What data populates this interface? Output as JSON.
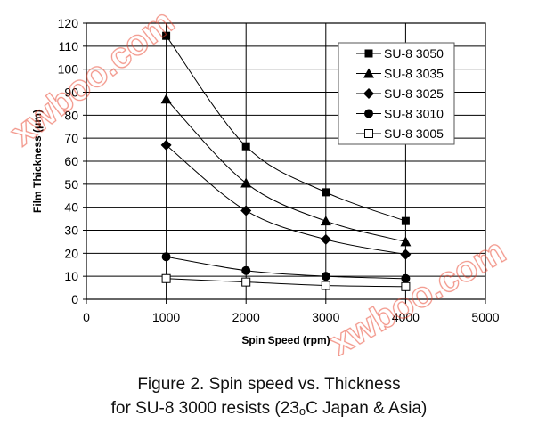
{
  "chart_data": {
    "type": "line",
    "xlabel": "Spin Speed (rpm)",
    "ylabel": "Film Thickness (μm)",
    "xlim": [
      0,
      5000
    ],
    "ylim": [
      0,
      120
    ],
    "x_ticks": [
      0,
      1000,
      2000,
      3000,
      4000,
      5000
    ],
    "y_ticks": [
      0,
      10,
      20,
      30,
      40,
      50,
      60,
      70,
      80,
      90,
      100,
      110,
      120
    ],
    "grid": "horizontal every 10, vertical at 1000-4000",
    "legend_position": "top-right",
    "x": [
      1000,
      2000,
      3000,
      4000
    ],
    "series": [
      {
        "name": "SU-8 3050",
        "marker": "filled-square",
        "values": [
          114.5,
          66.5,
          46.5,
          34
        ]
      },
      {
        "name": "SU-8 3035",
        "marker": "filled-triangle",
        "values": [
          87,
          50.5,
          34,
          25
        ]
      },
      {
        "name": "SU-8 3025",
        "marker": "filled-diamond",
        "values": [
          67,
          38.5,
          26,
          19.5
        ]
      },
      {
        "name": "SU-8 3010",
        "marker": "filled-circle",
        "values": [
          18.5,
          12.5,
          10,
          9
        ]
      },
      {
        "name": "SU-8 3005",
        "marker": "open-square",
        "values": [
          9,
          7.5,
          6,
          5.5
        ]
      }
    ]
  },
  "caption": {
    "line1": "Figure 2. Spin speed vs. Thickness",
    "line2_a": "for SU-8 3000 resists (23",
    "line2_sup": "o",
    "line2_b": "C Japan & Asia)"
  },
  "watermark": "xwboo.com",
  "colors": {
    "watermark": "#e8402a",
    "ink": "#000000"
  }
}
